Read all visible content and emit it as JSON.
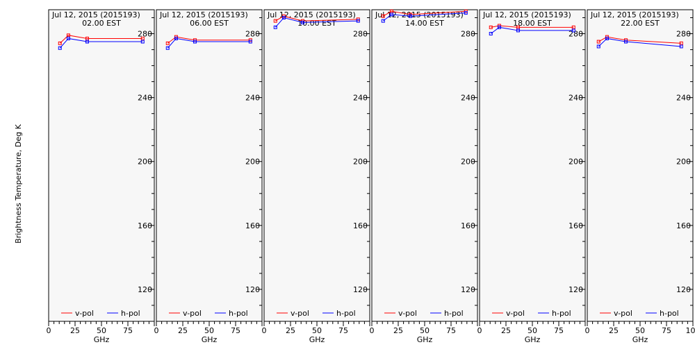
{
  "chart_data": {
    "type": "line",
    "ylabel": "Brightness Temperature, Deg K",
    "xlabel": "GHz",
    "ylim": [
      100,
      295
    ],
    "xlim": [
      0,
      100
    ],
    "yticks": [
      120,
      160,
      200,
      240,
      280
    ],
    "xticks": [
      0,
      25,
      50,
      75,
      100
    ],
    "xtick_labels": [
      "0",
      "25",
      "50",
      "75",
      "100"
    ],
    "legend": [
      "v-pol",
      "h-pol"
    ],
    "colors": {
      "v-pol": "#ff0000",
      "h-pol": "#0000ff",
      "panel_bg": "#f7f7f7"
    },
    "x": [
      10.7,
      18.7,
      36.5,
      89.0
    ],
    "panels": [
      {
        "date": "Jul 12, 2015 (2015193)",
        "time": "02.00 EST",
        "series": [
          {
            "name": "v-pol",
            "values": [
              274,
              279,
              277,
              277
            ]
          },
          {
            "name": "h-pol",
            "values": [
              271,
              277,
              275,
              275
            ]
          }
        ]
      },
      {
        "date": "Jul 12, 2015 (2015193)",
        "time": "06.00 EST",
        "series": [
          {
            "name": "v-pol",
            "values": [
              274,
              278,
              276,
              276
            ]
          },
          {
            "name": "h-pol",
            "values": [
              271,
              277,
              275,
              275
            ]
          }
        ]
      },
      {
        "date": "Jul 12, 2015 (2015193)",
        "time": "10.00 EST",
        "series": [
          {
            "name": "v-pol",
            "values": [
              288,
              291,
              288,
              289
            ]
          },
          {
            "name": "h-pol",
            "values": [
              284,
              290,
              287,
              288
            ]
          }
        ]
      },
      {
        "date": "Jul 12, 2015 (2015193)",
        "time": "14.00 EST",
        "series": [
          {
            "name": "v-pol",
            "values": [
              291,
              294,
              292,
              294
            ]
          },
          {
            "name": "h-pol",
            "values": [
              288,
              292,
              291,
              293
            ]
          }
        ]
      },
      {
        "date": "Jul 12, 2015 (2015193)",
        "time": "18.00 EST",
        "series": [
          {
            "name": "v-pol",
            "values": [
              284,
              285,
              284,
              284
            ]
          },
          {
            "name": "h-pol",
            "values": [
              280,
              284,
              282,
              282
            ]
          }
        ]
      },
      {
        "date": "Jul 12, 2015 (2015193)",
        "time": "22.00 EST",
        "series": [
          {
            "name": "v-pol",
            "values": [
              275,
              278,
              276,
              274
            ]
          },
          {
            "name": "h-pol",
            "values": [
              272,
              277,
              275,
              272
            ]
          }
        ]
      }
    ]
  }
}
